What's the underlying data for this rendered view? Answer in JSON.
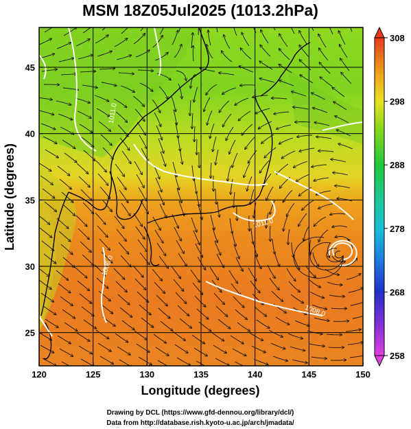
{
  "title": "MSM 18Z05Jul2025 (1013.2hPa)",
  "map": {
    "xlabel": "Longitude (degrees)",
    "ylabel": "Latitude  (degrees)",
    "xlim": [
      120,
      150
    ],
    "ylim": [
      22.5,
      48
    ],
    "x_ticks": [
      120,
      125,
      130,
      135,
      140,
      145,
      150
    ],
    "y_ticks": [
      25,
      30,
      35,
      40,
      45
    ],
    "grid": true,
    "field": "temperature (K) with streamlines",
    "contour_labels": [
      {
        "text": "1011.0",
        "lon": 127.0,
        "lat": 41.5,
        "rotate": -80
      },
      {
        "text": "1006.0",
        "lon": 126.5,
        "lat": 30.0,
        "rotate": -70
      },
      {
        "text": "1008.0",
        "lon": 145.5,
        "lat": 26.5,
        "rotate": 20
      },
      {
        "text": "1011.0",
        "lon": 140.8,
        "lat": 33.1,
        "rotate": -15
      }
    ],
    "cyclone_center": {
      "lon": 148.0,
      "lat": 31.2
    }
  },
  "colorbar": {
    "min": 258,
    "max": 308,
    "ticks": [
      258,
      268,
      278,
      288,
      298,
      308
    ],
    "colors": [
      "#e040e0",
      "#6a2ad6",
      "#2030c8",
      "#1c7ae0",
      "#19c0d8",
      "#1cc890",
      "#22c83a",
      "#8ed81c",
      "#e8e020",
      "#f0a81c",
      "#e86a1c",
      "#e8381c"
    ]
  },
  "credits": {
    "line1": "Drawing by DCL (https://www.gfd-dennou.org/library/dcl/)",
    "line2": "Data from http://database.rish.kyoto-u.ac.jp/arch/jmadata/"
  }
}
